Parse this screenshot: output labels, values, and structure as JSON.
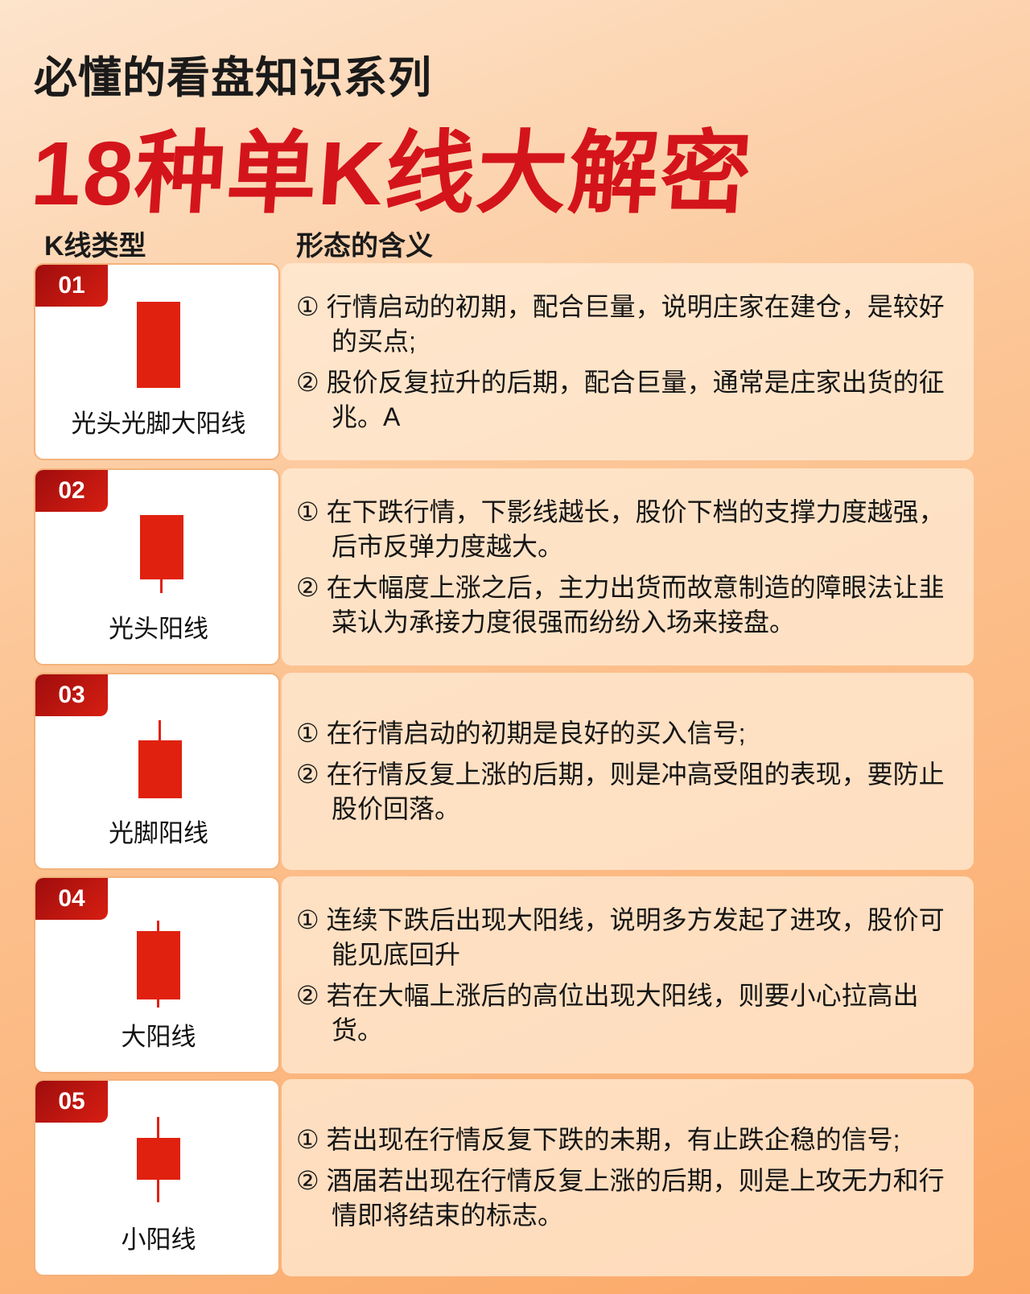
{
  "header": {
    "subtitle": "必懂的看盘知识系列",
    "title": "18种单K线大解密"
  },
  "columns": {
    "type": "K线类型",
    "meaning": "形态的含义"
  },
  "colors": {
    "accent": "#d4141b",
    "candle": "#e0210f"
  },
  "rows": [
    {
      "num": "01",
      "name": "光头光脚大阳线",
      "upper_shadow": false,
      "lower_shadow": false,
      "points": [
        "① 行情启动的初期，配合巨量，说明庄家在建仓，是较好的买点;",
        "② 股价反复拉升的后期，配合巨量，通常是庄家出货的征兆。A"
      ]
    },
    {
      "num": "02",
      "name": "光头阳线",
      "upper_shadow": false,
      "lower_shadow": true,
      "points": [
        "① 在下跌行情，下影线越长，股价下档的支撑力度越强，后市反弹力度越大。",
        "② 在大幅度上涨之后，主力出货而故意制造的障眼法让韭菜认为承接力度很强而纷纷入场来接盘。"
      ]
    },
    {
      "num": "03",
      "name": "光脚阳线",
      "upper_shadow": true,
      "lower_shadow": false,
      "points": [
        "① 在行情启动的初期是良好的买入信号;",
        "② 在行情反复上涨的后期，则是冲高受阻的表现，要防止股价回落。"
      ]
    },
    {
      "num": "04",
      "name": "大阳线",
      "upper_shadow": true,
      "lower_shadow": true,
      "points": [
        "① 连续下跌后出现大阳线，说明多方发起了进攻，股价可能见底回升",
        "② 若在大幅上涨后的高位出现大阳线，则要小心拉高出货。"
      ]
    },
    {
      "num": "05",
      "name": "小阳线",
      "upper_shadow": true,
      "lower_shadow": true,
      "points": [
        "① 若出现在行情反复下跌的未期，有止跌企稳的信号;",
        "② 酒届若出现在行情反复上涨的后期，则是上攻无力和行情即将结束的标志。"
      ]
    }
  ]
}
